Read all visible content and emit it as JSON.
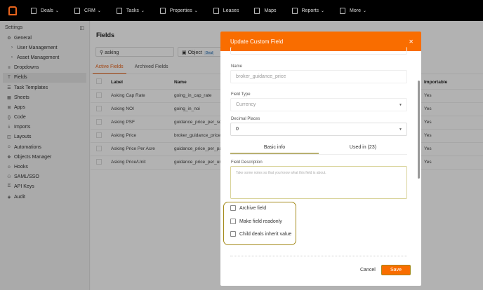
{
  "nav": {
    "items": [
      "Deals",
      "CRM",
      "Tasks",
      "Properties",
      "Leases",
      "Maps",
      "Reports",
      "More"
    ],
    "chevrons": [
      true,
      true,
      true,
      true,
      false,
      false,
      true,
      true
    ]
  },
  "sidebar": {
    "title": "Settings",
    "items": [
      {
        "label": "General",
        "icon": "gear-icon",
        "g": "⚙"
      },
      {
        "label": "User Management",
        "icon": "chevron-right-icon",
        "g": "›",
        "sub": true
      },
      {
        "label": "Asset Management",
        "icon": "chevron-right-icon",
        "g": "›",
        "sub": true
      },
      {
        "label": "Dropdowns",
        "icon": "list-icon",
        "g": "≡"
      },
      {
        "label": "Fields",
        "icon": "text-icon",
        "g": "T",
        "active": true
      },
      {
        "label": "Task Templates",
        "icon": "task-icon",
        "g": "☰"
      },
      {
        "label": "Sheets",
        "icon": "table-icon",
        "g": "▦"
      },
      {
        "label": "Apps",
        "icon": "apps-icon",
        "g": "⊞"
      },
      {
        "label": "Code",
        "icon": "code-icon",
        "g": "{}"
      },
      {
        "label": "Imports",
        "icon": "download-icon",
        "g": "⤓"
      },
      {
        "label": "Layouts",
        "icon": "layout-icon",
        "g": "◫"
      },
      {
        "label": "Automations",
        "icon": "robot-icon",
        "g": "☺"
      },
      {
        "label": "Objects Manager",
        "icon": "objects-icon",
        "g": "❖"
      },
      {
        "label": "Hooks",
        "icon": "hook-icon",
        "g": "☺"
      },
      {
        "label": "SAML/SSO",
        "icon": "users-icon",
        "g": "⚇"
      },
      {
        "label": "API Keys",
        "icon": "key-icon",
        "g": "⚿"
      },
      {
        "label": "Audit",
        "icon": "shield-icon",
        "g": "◈"
      }
    ]
  },
  "main": {
    "title": "Fields",
    "search": "asking",
    "object_label": "Object",
    "object_value": "Deal",
    "tabs": [
      "Active Fields",
      "Archived Fields"
    ],
    "columns": [
      "Label",
      "Name",
      "Importable"
    ],
    "rows": [
      [
        "Asking Cap Rate",
        "going_in_cap_rate",
        "Yes"
      ],
      [
        "Asking NOI",
        "going_in_noi",
        "Yes"
      ],
      [
        "Asking PSF",
        "guidance_price_per_sq_ft",
        "Yes"
      ],
      [
        "Asking Price",
        "broker_guidance_price",
        "Yes"
      ],
      [
        "Asking Price Per Acre",
        "guidance_price_per_parcel",
        "Yes"
      ],
      [
        "Asking Price/Unit",
        "guidance_price_per_unit",
        "Yes"
      ]
    ]
  },
  "modal": {
    "title": "Update Custom Field",
    "name_label": "Name",
    "name_value": "broker_guidance_price",
    "type_label": "Field Type",
    "type_value": "Currency",
    "decimal_label": "Decimal Places",
    "decimal_value": "0",
    "tabs": [
      "Basic info",
      "Used in (23)"
    ],
    "desc_label": "Field Description",
    "desc_placeholder": "Take some notes so that you know what this field is about.",
    "checkboxes": [
      "Archive field",
      "Make field readonly",
      "Child deals inherit value"
    ],
    "cancel": "Cancel",
    "save": "Save"
  },
  "colors": {
    "accent": "#f96d00",
    "highlight": "#a48a1a"
  }
}
